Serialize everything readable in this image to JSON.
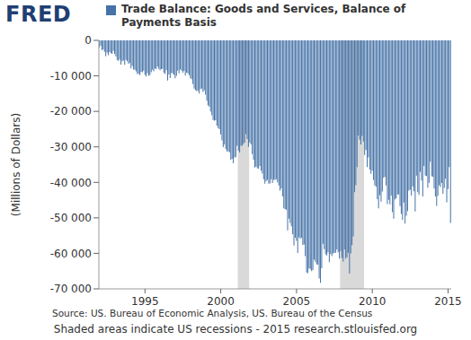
{
  "logo": "FRED",
  "source": "Source: US. Bureau of Economic Analysis, US. Bureau of the Census",
  "note": "Shaded areas indicate US recessions - 2015 research.stlouisfed.org",
  "chart_data": {
    "type": "bar",
    "title": "Trade Balance: Goods and Services, Balance of Payments Basis",
    "y_label": "(Millions of Dollars)",
    "color": "#4572a7",
    "grid": false,
    "ylim": [
      -70000,
      0
    ],
    "yticks": [
      {
        "value": -70000,
        "label": "-70 000"
      },
      {
        "value": -60000,
        "label": "-60 000"
      },
      {
        "value": -50000,
        "label": "-50 000"
      },
      {
        "value": -40000,
        "label": "-40 000"
      },
      {
        "value": -30000,
        "label": "-30 000"
      },
      {
        "value": -20000,
        "label": "-20 000"
      },
      {
        "value": -10000,
        "label": "-10 000"
      },
      0
    ],
    "recessions": [
      {
        "start": 110,
        "end": 118
      },
      {
        "start": 191,
        "end": 209
      }
    ],
    "categories": [
      null,
      null,
      null,
      null,
      null,
      null,
      null,
      null,
      null,
      null,
      null,
      null,
      null,
      null,
      null,
      null,
      null,
      null,
      null,
      null,
      null,
      null,
      null,
      null,
      null,
      null,
      null,
      null,
      null,
      null,
      null,
      null,
      null,
      null,
      null,
      null,
      "1995",
      null,
      null,
      null,
      null,
      null,
      null,
      null,
      null,
      null,
      null,
      null,
      null,
      null,
      null,
      null,
      null,
      null,
      null,
      null,
      null,
      null,
      null,
      null,
      null,
      null,
      null,
      null,
      null,
      null,
      null,
      null,
      null,
      null,
      null,
      null,
      null,
      null,
      null,
      null,
      null,
      null,
      null,
      null,
      null,
      null,
      null,
      null,
      null,
      null,
      null,
      null,
      null,
      null,
      null,
      null,
      null,
      null,
      null,
      null,
      "2000",
      null,
      null,
      null,
      null,
      null,
      null,
      null,
      null,
      null,
      null,
      null,
      null,
      null,
      null,
      null,
      null,
      null,
      null,
      null,
      null,
      null,
      null,
      null,
      null,
      null,
      null,
      null,
      null,
      null,
      null,
      null,
      null,
      null,
      null,
      null,
      null,
      null,
      null,
      null,
      null,
      null,
      null,
      null,
      null,
      null,
      null,
      null,
      null,
      null,
      null,
      null,
      null,
      null,
      null,
      null,
      null,
      null,
      null,
      null,
      "2005",
      null,
      null,
      null,
      null,
      null,
      null,
      null,
      null,
      null,
      null,
      null,
      null,
      null,
      null,
      null,
      null,
      null,
      null,
      null,
      null,
      null,
      null,
      null,
      null,
      null,
      null,
      null,
      null,
      null,
      null,
      null,
      null,
      null,
      null,
      null,
      null,
      null,
      null,
      null,
      null,
      null,
      null,
      null,
      null,
      null,
      null,
      null,
      null,
      null,
      null,
      null,
      null,
      null,
      null,
      null,
      null,
      null,
      null,
      null,
      "2010",
      null,
      null,
      null,
      null,
      null,
      null,
      null,
      null,
      null,
      null,
      null,
      null,
      null,
      null,
      null,
      null,
      null,
      null,
      null,
      null,
      null,
      null,
      null,
      null,
      null,
      null,
      null,
      null,
      null,
      null,
      null,
      null,
      null,
      null,
      null,
      null,
      null,
      null,
      null,
      null,
      null,
      null,
      null,
      null,
      null,
      null,
      null,
      null,
      null,
      null,
      null,
      null,
      null,
      null,
      null,
      null,
      null,
      null,
      null,
      "2015",
      null,
      null
    ],
    "values": [
      -2000,
      -1500,
      -2800,
      -2500,
      -3200,
      -4500,
      -3500,
      -4200,
      -3300,
      -3600,
      -3800,
      -3000,
      -3800,
      -4500,
      -5500,
      -5800,
      -5400,
      -6800,
      -5900,
      -5700,
      -6900,
      -5500,
      -5900,
      -6600,
      -6400,
      -7900,
      -7200,
      -8200,
      -8300,
      -8700,
      -9500,
      -9400,
      -9800,
      -8900,
      -9000,
      -8500,
      -9700,
      -10200,
      -9200,
      -10000,
      -9800,
      -9000,
      -8300,
      -8700,
      -7900,
      -8100,
      -7300,
      -8000,
      -8400,
      -8100,
      -8000,
      -9100,
      -9500,
      -8400,
      -11300,
      -9600,
      -10600,
      -9200,
      -9300,
      -9700,
      -10700,
      -10000,
      -8500,
      -9300,
      -8200,
      -8500,
      -9100,
      -8600,
      -9900,
      -9100,
      -9300,
      -9800,
      -10700,
      -10900,
      -12300,
      -13600,
      -14000,
      -14300,
      -14200,
      -15000,
      -13700,
      -13600,
      -14500,
      -14100,
      -15300,
      -17000,
      -18300,
      -18700,
      -20000,
      -21100,
      -22400,
      -22600,
      -22500,
      -24000,
      -24700,
      -25000,
      -26500,
      -28200,
      -30100,
      -29300,
      -30600,
      -31300,
      -31300,
      -31500,
      -33700,
      -33400,
      -34600,
      -33000,
      -32900,
      -29700,
      -31100,
      -31600,
      -29700,
      -29700,
      -29200,
      -28800,
      -26400,
      -27800,
      -30000,
      -28800,
      -29300,
      -32000,
      -33600,
      -35800,
      -35600,
      -36000,
      -36200,
      -35400,
      -36700,
      -37500,
      -39100,
      -40400,
      -39700,
      -39300,
      -40400,
      -40300,
      -39100,
      -40200,
      -39300,
      -39300,
      -39100,
      -40000,
      -40900,
      -42300,
      -41700,
      -44000,
      -47300,
      -47600,
      -47700,
      -53500,
      -50200,
      -51400,
      -52400,
      -54600,
      -57800,
      -55600,
      -56500,
      -59900,
      -55500,
      -55900,
      -55600,
      -57600,
      -57500,
      -60800,
      -65400,
      -65600,
      -64200,
      -64500,
      -65000,
      -64700,
      -61800,
      -62400,
      -63100,
      -63200,
      -67100,
      -68300,
      -64200,
      -57300,
      -58800,
      -60300,
      -60600,
      -59700,
      -62500,
      -60200,
      -60800,
      -60000,
      -59900,
      -59800,
      -58900,
      -59700,
      -61500,
      -59400,
      -61300,
      -62300,
      -58900,
      -61500,
      -61100,
      -59800,
      -65700,
      -60000,
      -57700,
      -55200,
      -42800,
      -40800,
      -35700,
      -26800,
      -28000,
      -29300,
      -26900,
      -28500,
      -32300,
      -30900,
      -35700,
      -33000,
      -36400,
      -37600,
      -36700,
      -39300,
      -40900,
      -41200,
      -44700,
      -47300,
      -43600,
      -45400,
      -42600,
      -38700,
      -38500,
      -40900,
      -46100,
      -44900,
      -46200,
      -43700,
      -48400,
      -50200,
      -44800,
      -44500,
      -43400,
      -43400,
      -46700,
      -48900,
      -50600,
      -45700,
      -51600,
      -49400,
      -48100,
      -42300,
      -42100,
      -43700,
      -41100,
      -42500,
      -48200,
      -38100,
      -42800,
      -43500,
      -37000,
      -39500,
      -44000,
      -35400,
      -38100,
      -38200,
      -41500,
      -40100,
      -34200,
      -38300,
      -38400,
      -41700,
      -44000,
      -46600,
      -43800,
      -40800,
      -41300,
      -40200,
      -43200,
      -41600,
      -39000,
      -45600,
      -41900,
      -35700,
      -51400
    ]
  }
}
